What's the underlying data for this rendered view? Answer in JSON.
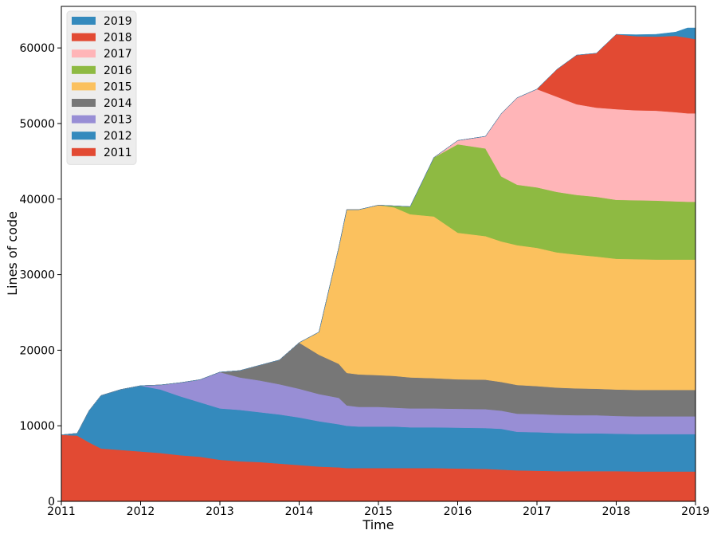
{
  "chart_data": {
    "type": "area",
    "stacked": true,
    "xlabel": "Time",
    "ylabel": "Lines of code",
    "xlim": [
      2011,
      2019
    ],
    "ylim": [
      0,
      65500
    ],
    "x_ticks": [
      2011,
      2012,
      2013,
      2014,
      2015,
      2016,
      2017,
      2018,
      2019
    ],
    "y_ticks": [
      0,
      10000,
      20000,
      30000,
      40000,
      50000,
      60000
    ],
    "grid": false,
    "legend_position": "top-left",
    "legend_order": [
      "2019",
      "2018",
      "2017",
      "2016",
      "2015",
      "2014",
      "2013",
      "2012",
      "2011"
    ],
    "x": [
      2011.0,
      2011.2,
      2011.35,
      2011.5,
      2011.75,
      2012.0,
      2012.25,
      2012.5,
      2012.75,
      2013.0,
      2013.25,
      2013.5,
      2013.75,
      2014.0,
      2014.25,
      2014.5,
      2014.6,
      2014.75,
      2015.0,
      2015.2,
      2015.4,
      2015.7,
      2016.0,
      2016.35,
      2016.55,
      2016.75,
      2017.0,
      2017.25,
      2017.5,
      2017.75,
      2018.0,
      2018.25,
      2018.5,
      2018.75,
      2018.9,
      2019.0
    ],
    "series": [
      {
        "name": "2011",
        "color": "#e24a33",
        "values": [
          8800,
          8700,
          7800,
          7000,
          6800,
          6600,
          6400,
          6100,
          5900,
          5500,
          5300,
          5200,
          5000,
          4800,
          4600,
          4500,
          4400,
          4400,
          4400,
          4400,
          4400,
          4400,
          4350,
          4300,
          4200,
          4100,
          4050,
          4000,
          4000,
          4000,
          4000,
          3950,
          3950,
          3950,
          3950,
          3950
        ]
      },
      {
        "name": "2012",
        "color": "#348abd",
        "values": [
          0,
          300,
          4200,
          7000,
          8000,
          8700,
          8400,
          7800,
          7200,
          6800,
          6800,
          6600,
          6500,
          6300,
          6000,
          5700,
          5600,
          5500,
          5500,
          5500,
          5400,
          5400,
          5400,
          5400,
          5400,
          5100,
          5100,
          5050,
          5000,
          5000,
          4950,
          4950,
          4950,
          4950,
          4950,
          4950
        ]
      },
      {
        "name": "2013",
        "color": "#988ed5",
        "values": [
          0,
          0,
          0,
          0,
          0,
          0,
          600,
          1800,
          3000,
          4800,
          4300,
          4200,
          4000,
          3800,
          3600,
          3500,
          2700,
          2600,
          2600,
          2500,
          2500,
          2500,
          2500,
          2500,
          2400,
          2400,
          2400,
          2400,
          2400,
          2400,
          2350,
          2350,
          2350,
          2350,
          2350,
          2350
        ]
      },
      {
        "name": "2014",
        "color": "#777777",
        "values": [
          0,
          0,
          0,
          0,
          0,
          0,
          0,
          0,
          0,
          0,
          900,
          2000,
          3200,
          6100,
          5200,
          4500,
          4300,
          4300,
          4200,
          4200,
          4100,
          4000,
          3900,
          3900,
          3800,
          3800,
          3700,
          3600,
          3550,
          3500,
          3500,
          3500,
          3500,
          3500,
          3500,
          3500
        ]
      },
      {
        "name": "2015",
        "color": "#fbc15e",
        "values": [
          0,
          0,
          0,
          0,
          0,
          0,
          0,
          0,
          0,
          0,
          0,
          0,
          0,
          0,
          3000,
          15400,
          21600,
          21800,
          22500,
          22300,
          21600,
          21400,
          19400,
          19000,
          18600,
          18500,
          18300,
          17900,
          17700,
          17500,
          17300,
          17300,
          17250,
          17250,
          17250,
          17250
        ]
      },
      {
        "name": "2016",
        "color": "#8eba42",
        "values": [
          0,
          0,
          0,
          0,
          0,
          0,
          0,
          0,
          0,
          0,
          0,
          0,
          0,
          0,
          0,
          0,
          0,
          0,
          0,
          200,
          1000,
          7800,
          11700,
          11600,
          8600,
          8000,
          8000,
          8000,
          7900,
          7900,
          7800,
          7800,
          7800,
          7700,
          7650,
          7650
        ]
      },
      {
        "name": "2017",
        "color": "#ffb5b8",
        "values": [
          0,
          0,
          0,
          0,
          0,
          0,
          0,
          0,
          0,
          0,
          0,
          0,
          0,
          0,
          0,
          0,
          0,
          0,
          0,
          0,
          0,
          0,
          500,
          1600,
          8300,
          11500,
          13000,
          12600,
          12000,
          11800,
          12000,
          11900,
          11900,
          11800,
          11700,
          11700
        ]
      },
      {
        "name": "2018",
        "color": "#e24a33",
        "values": [
          0,
          0,
          0,
          0,
          0,
          0,
          0,
          0,
          0,
          0,
          0,
          0,
          0,
          0,
          0,
          0,
          0,
          0,
          0,
          0,
          0,
          0,
          0,
          0,
          0,
          0,
          0,
          3600,
          6500,
          7200,
          9900,
          9800,
          9800,
          10100,
          10000,
          9800
        ]
      },
      {
        "name": "2019",
        "color": "#348abd",
        "values": [
          0,
          0,
          0,
          0,
          0,
          0,
          0,
          0,
          0,
          0,
          0,
          0,
          0,
          0,
          0,
          0,
          0,
          0,
          0,
          0,
          0,
          0,
          0,
          0,
          0,
          0,
          0,
          0,
          0,
          0,
          0,
          200,
          300,
          500,
          1300,
          1500
        ]
      }
    ]
  }
}
